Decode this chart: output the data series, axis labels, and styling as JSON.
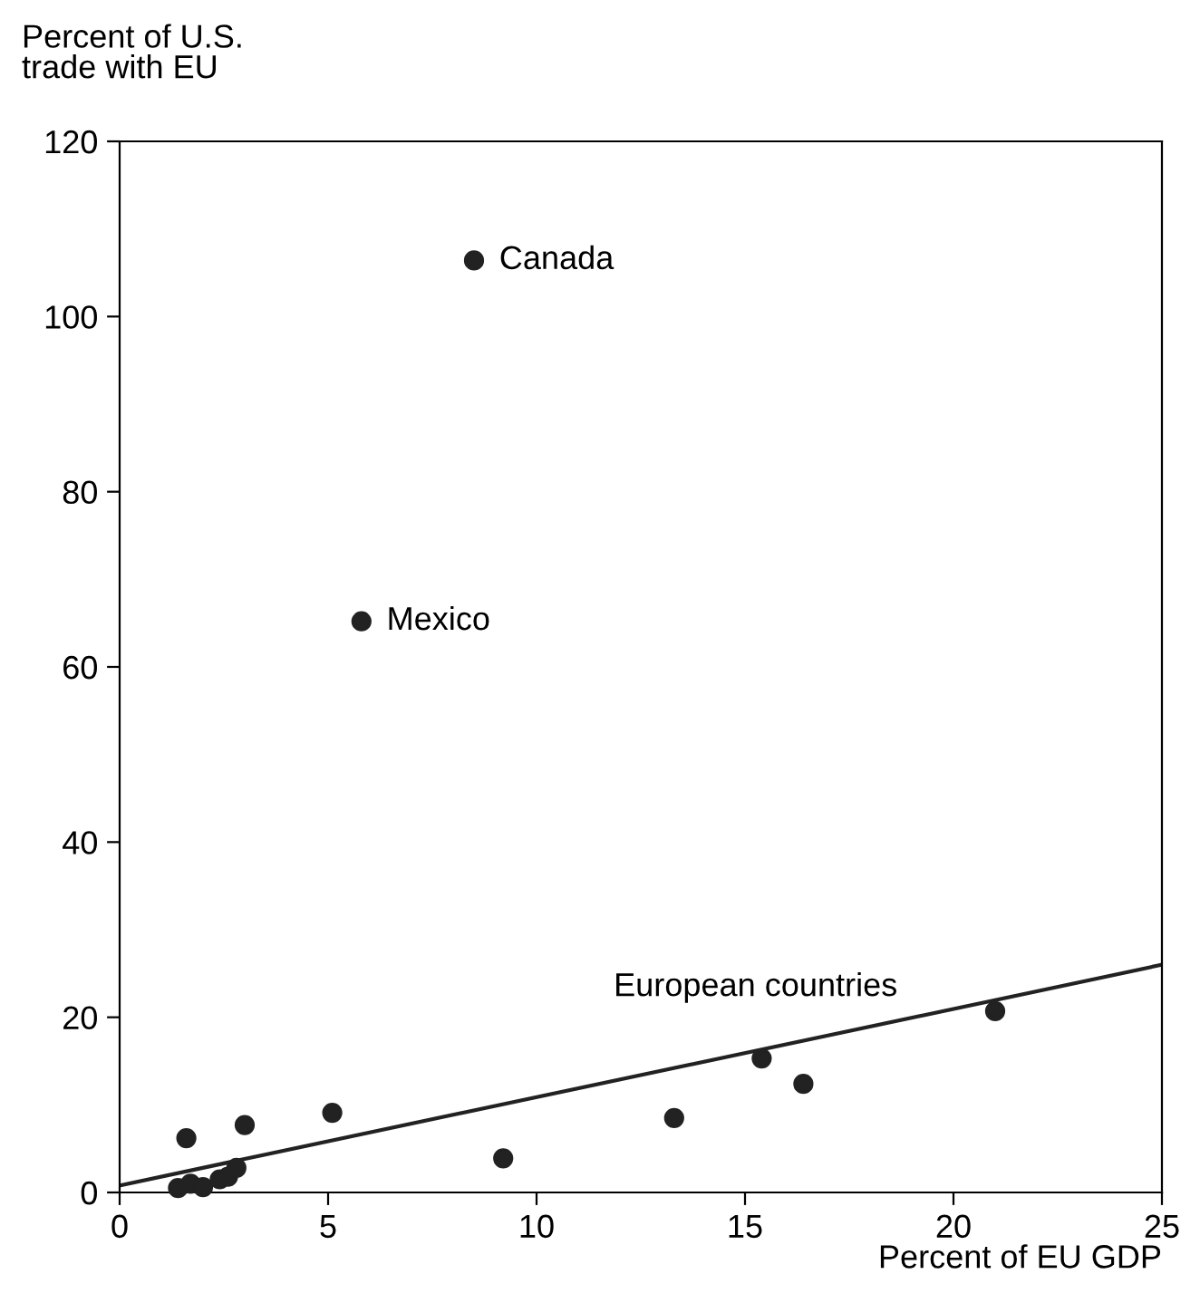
{
  "chart_data": {
    "type": "scatter",
    "xlabel": "Percent of EU GDP",
    "ylabel": "Percent of U.S.\ntrade with EU",
    "series": [
      {
        "marker": "circle",
        "color": "#222222",
        "x": [
          8.5,
          5.8,
          1.6,
          3.0,
          5.1,
          9.2,
          13.3,
          15.4,
          16.4,
          21.0,
          1.4,
          1.7,
          2.0,
          2.4,
          2.6,
          2.8
        ],
        "values": [
          106.4,
          65.2,
          6.2,
          7.7,
          9.1,
          3.9,
          8.5,
          15.3,
          12.4,
          20.7,
          0.5,
          1.0,
          0.6,
          1.5,
          1.8,
          2.8
        ]
      },
      {
        "type": "line",
        "color": "#222222",
        "x": [
          0,
          25
        ],
        "values": [
          0.8,
          26
        ]
      }
    ],
    "annotations": [
      {
        "text": "Canada",
        "x": 8.5,
        "y": 106.4
      },
      {
        "text": "Mexico",
        "x": 5.8,
        "y": 65.2
      },
      "European countries"
    ],
    "xlim": [
      0,
      25
    ],
    "ylim": [
      0,
      120
    ],
    "xticks": [
      0,
      5,
      10,
      15,
      20,
      25
    ],
    "yticks": [
      0,
      20,
      40,
      60,
      80,
      100,
      120
    ],
    "grid": false,
    "legend": false
  }
}
